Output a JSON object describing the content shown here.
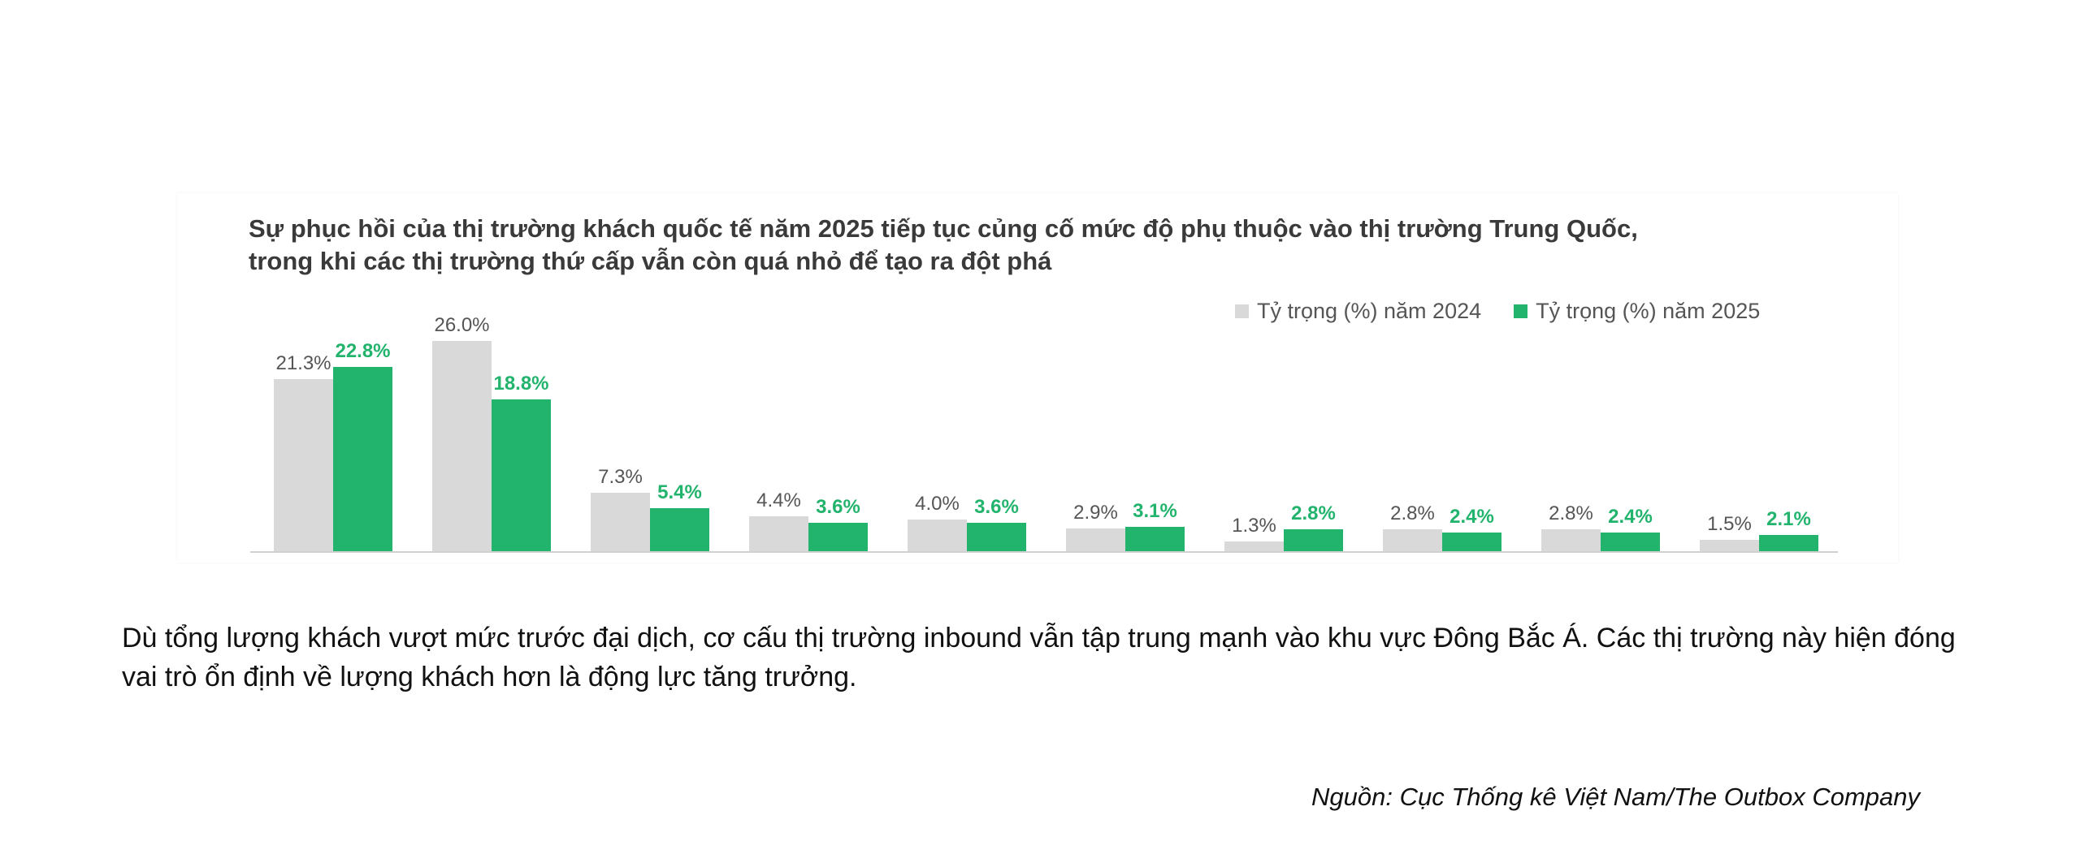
{
  "chart_data": {
    "type": "bar",
    "title": "Sự phục hồi của thị trường khách quốc tế năm 2025 tiếp tục củng cố mức độ phụ thuộc vào thị trường Trung Quốc, trong khi các thị trường thứ cấp vẫn còn quá nhỏ để tạo ra đột phá",
    "categories": [
      "",
      "",
      "",
      "",
      "",
      "",
      "",
      "",
      "",
      ""
    ],
    "series": [
      {
        "name": "Tỷ trọng (%) năm 2024",
        "color": "#d9d9d9",
        "values": [
          21.3,
          26.0,
          7.3,
          4.4,
          4.0,
          2.9,
          1.3,
          2.8,
          2.8,
          1.5
        ],
        "labels": [
          "21.3%",
          "26.0%",
          "7.3%",
          "4.4%",
          "4.0%",
          "2.9%",
          "1.3%",
          "2.8%",
          "2.8%",
          "1.5%"
        ]
      },
      {
        "name": "Tỷ trọng (%) năm 2025",
        "color": "#22b36c",
        "values": [
          22.8,
          18.8,
          5.4,
          3.6,
          3.6,
          3.1,
          2.8,
          2.4,
          2.4,
          2.1
        ],
        "labels": [
          "22.8%",
          "18.8%",
          "5.4%",
          "3.6%",
          "3.6%",
          "3.1%",
          "2.8%",
          "2.4%",
          "2.4%",
          "2.1%"
        ]
      }
    ],
    "ylim": [
      0,
      26
    ],
    "grid": false,
    "legend": "top-right",
    "xlabel": "",
    "ylabel": ""
  },
  "paragraph": "Dù tổng lượng khách vượt mức trước đại dịch, cơ cấu thị trường inbound vẫn tập trung mạnh vào khu vực Đông Bắc Á. Các thị trường này hiện đóng vai trò ổn định về lượng khách hơn là động lực tăng trưởng.",
  "source": "Nguồn: Cục Thống kê Việt Nam/The Outbox Company"
}
